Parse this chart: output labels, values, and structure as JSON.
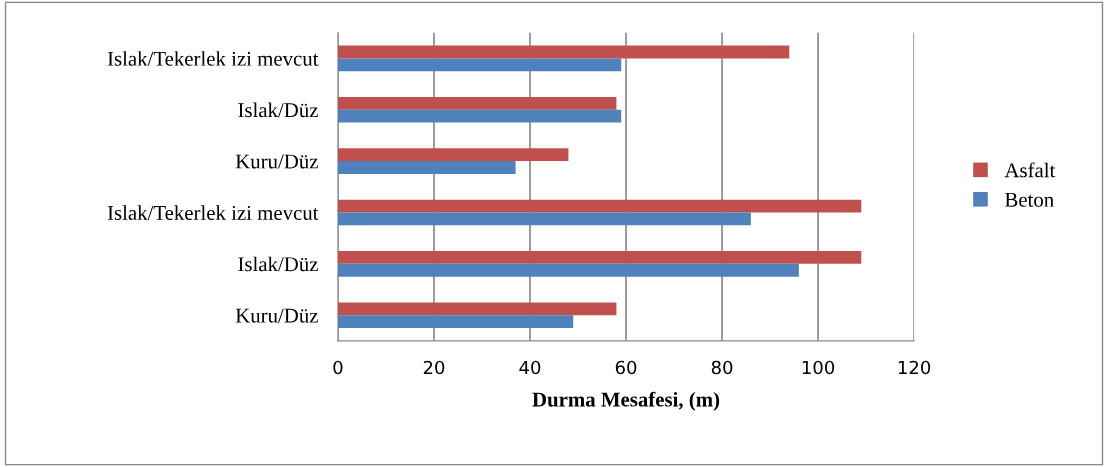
{
  "chart_data": {
    "type": "bar",
    "orientation": "horizontal",
    "xlabel": "Durma Mesafesi, (m)",
    "categories": [
      "Islak/Tekerlek izi mevcut",
      "Islak/Düz",
      "Kuru/Düz",
      "Islak/Tekerlek izi mevcut",
      "Islak/Düz",
      "Kuru/Düz"
    ],
    "series": [
      {
        "name": "Asfalt",
        "color": "#c0504d",
        "values": [
          94,
          58,
          48,
          109,
          109,
          58
        ]
      },
      {
        "name": "Beton",
        "color": "#4f81bd",
        "values": [
          59,
          59,
          37,
          86,
          96,
          49
        ]
      }
    ],
    "xlim": [
      0,
      120
    ],
    "xticks": [
      0,
      20,
      40,
      60,
      80,
      100,
      120
    ],
    "grid": "x",
    "legend": "right"
  }
}
